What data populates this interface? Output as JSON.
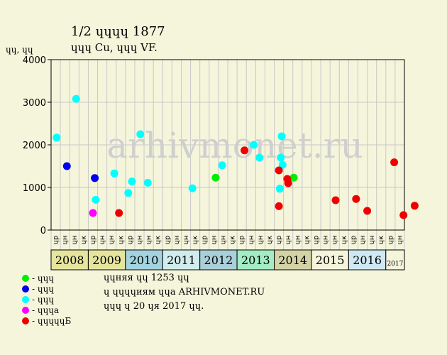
{
  "title": {
    "line1": "1/2 ɥɥɥɥ 1877",
    "line2": "ɥɥɥ Cu, ɥɥɥ VF."
  },
  "y_unit_label": "ɥɥ, ɥɥ",
  "watermark": "arhivmonet.ru",
  "info": {
    "line1": "ɥɥняя ɥɥ 1253 ɥɥ",
    "line2": "ɥ ɥɥɥɥиям ɥɥа ARHIVMONET.RU",
    "line3": "ɥɥɥ ɥ 20 ɥя 2017 ɥɥ."
  },
  "legend": [
    {
      "label": "- ɥɥɥ",
      "color": "#00ee00"
    },
    {
      "label": "- ɥɥɥ",
      "color": "#0000ee"
    },
    {
      "label": "- ɥɥɥ",
      "color": "#00ffff"
    },
    {
      "label": "- ɥɥɥа",
      "color": "#ff00ff"
    },
    {
      "label": "- ɥɥɥɥɥБ",
      "color": "#ee0000"
    }
  ],
  "colors": {
    "background": "#f5f5dc",
    "plot_background": "#f5f5dc",
    "grid": "#c8c8c8",
    "watermark": "#cfcfcf",
    "year_bands": [
      "#e5e59e",
      "#e5e59e",
      "#a3d3de",
      "#d0ecec",
      "#a9cfd9",
      "#a3ecc4",
      "#d3d3a6",
      "#f5f5dc",
      "#cfe8f3",
      "#f5f5dc"
    ]
  },
  "chart_data": {
    "type": "scatter",
    "ylim": [
      0,
      4000
    ],
    "yticks": [
      0,
      1000,
      2000,
      3000,
      4000
    ],
    "grid": true,
    "legend_position": "bottom-left",
    "x_categories": [
      "2008 ɥр",
      "2008 ɥн",
      "2008 ɥн",
      "2008 ɥк",
      "2009 ɥр",
      "2009 ɥн",
      "2009 ɥн",
      "2009 ɥк",
      "2010 ɥр",
      "2010 ɥн",
      "2010 ɥн",
      "2010 ɥк",
      "2011 ɥр",
      "2011 ɥн",
      "2011 ɥн",
      "2011 ɥк",
      "2012 ɥр",
      "2012 ɥн",
      "2012 ɥн",
      "2012 ɥк",
      "2013 ɥр",
      "2013 ɥн",
      "2013 ɥн",
      "2013 ɥк",
      "2014 ɥр",
      "2014 ɥн",
      "2014 ɥн",
      "2014 ɥк",
      "2015 ɥр",
      "2015 ɥн",
      "2015 ɥн",
      "2015 ɥк",
      "2016 ɥр",
      "2016 ɥн",
      "2016 ɥн",
      "2016 ɥк",
      "2017 ɥр",
      "2017 ɥн"
    ],
    "years": [
      {
        "label": "2008",
        "quarters": [
          "ɥр",
          "ɥн",
          "ɥн",
          "ɥк"
        ]
      },
      {
        "label": "2009",
        "quarters": [
          "ɥр",
          "ɥн",
          "ɥн",
          "ɥк"
        ]
      },
      {
        "label": "2010",
        "quarters": [
          "ɥр",
          "ɥн",
          "ɥн",
          "ɥк"
        ]
      },
      {
        "label": "2011",
        "quarters": [
          "ɥр",
          "ɥн",
          "ɥн",
          "ɥк"
        ]
      },
      {
        "label": "2012",
        "quarters": [
          "ɥр",
          "ɥн",
          "ɥн",
          "ɥк"
        ]
      },
      {
        "label": "2013",
        "quarters": [
          "ɥр",
          "ɥн",
          "ɥн",
          "ɥк"
        ]
      },
      {
        "label": "2014",
        "quarters": [
          "ɥр",
          "ɥн",
          "ɥн",
          "ɥк"
        ]
      },
      {
        "label": "2015",
        "quarters": [
          "ɥр",
          "ɥн",
          "ɥн",
          "ɥк"
        ]
      },
      {
        "label": "2016",
        "quarters": [
          "ɥр",
          "ɥн",
          "ɥн",
          "ɥк"
        ]
      },
      {
        "label": "2017",
        "quarters": [
          "ɥр",
          "ɥн"
        ]
      }
    ],
    "series": [
      {
        "color": "#00ee00",
        "points": [
          {
            "x": 17.2,
            "y": 1230
          },
          {
            "x": 25.6,
            "y": 1230
          }
        ]
      },
      {
        "color": "#0000ee",
        "points": [
          {
            "x": 1.2,
            "y": 1500
          },
          {
            "x": 4.2,
            "y": 1220
          }
        ]
      },
      {
        "color": "#00ffff",
        "points": [
          {
            "x": 0.1,
            "y": 2170
          },
          {
            "x": 2.2,
            "y": 3080
          },
          {
            "x": 4.3,
            "y": 710
          },
          {
            "x": 6.3,
            "y": 1330
          },
          {
            "x": 7.8,
            "y": 870
          },
          {
            "x": 8.2,
            "y": 1140
          },
          {
            "x": 9.1,
            "y": 2250
          },
          {
            "x": 9.9,
            "y": 1110
          },
          {
            "x": 14.7,
            "y": 980
          },
          {
            "x": 17.9,
            "y": 1520
          },
          {
            "x": 21.3,
            "y": 2000
          },
          {
            "x": 21.9,
            "y": 1700
          },
          {
            "x": 24.1,
            "y": 970
          },
          {
            "x": 24.2,
            "y": 1700
          },
          {
            "x": 24.3,
            "y": 2200
          },
          {
            "x": 24.4,
            "y": 1530
          }
        ]
      },
      {
        "color": "#ff00ff",
        "points": [
          {
            "x": 4.0,
            "y": 400
          }
        ]
      },
      {
        "color": "#ee0000",
        "points": [
          {
            "x": 6.8,
            "y": 400
          },
          {
            "x": 20.3,
            "y": 1870
          },
          {
            "x": 24.0,
            "y": 1400
          },
          {
            "x": 24.0,
            "y": 560
          },
          {
            "x": 24.9,
            "y": 1200
          },
          {
            "x": 25.0,
            "y": 1100
          },
          {
            "x": 30.1,
            "y": 700
          },
          {
            "x": 32.3,
            "y": 730
          },
          {
            "x": 33.5,
            "y": 450
          },
          {
            "x": 36.4,
            "y": 1590
          },
          {
            "x": 37.4,
            "y": 350
          },
          {
            "x": 38.6,
            "y": 570
          }
        ]
      }
    ]
  }
}
